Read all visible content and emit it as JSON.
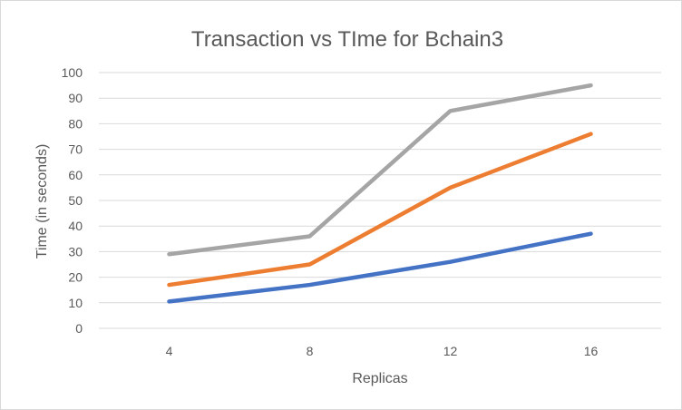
{
  "chart_data": {
    "type": "line",
    "title": "Transaction vs TIme for Bchain3",
    "xlabel": "Replicas",
    "ylabel": "Time (in seconds)",
    "categories": [
      "4",
      "8",
      "12",
      "16"
    ],
    "ylim": [
      0,
      100
    ],
    "yticks": [
      0,
      10,
      20,
      30,
      40,
      50,
      60,
      70,
      80,
      90,
      100
    ],
    "grid": true,
    "legend": "none",
    "series": [
      {
        "color": "#4472c4",
        "values": [
          10.5,
          17,
          26,
          37
        ]
      },
      {
        "color": "#ed7d31",
        "values": [
          17,
          25,
          55,
          76
        ]
      },
      {
        "color": "#a5a5a5",
        "values": [
          29,
          36,
          85,
          95
        ]
      }
    ]
  }
}
